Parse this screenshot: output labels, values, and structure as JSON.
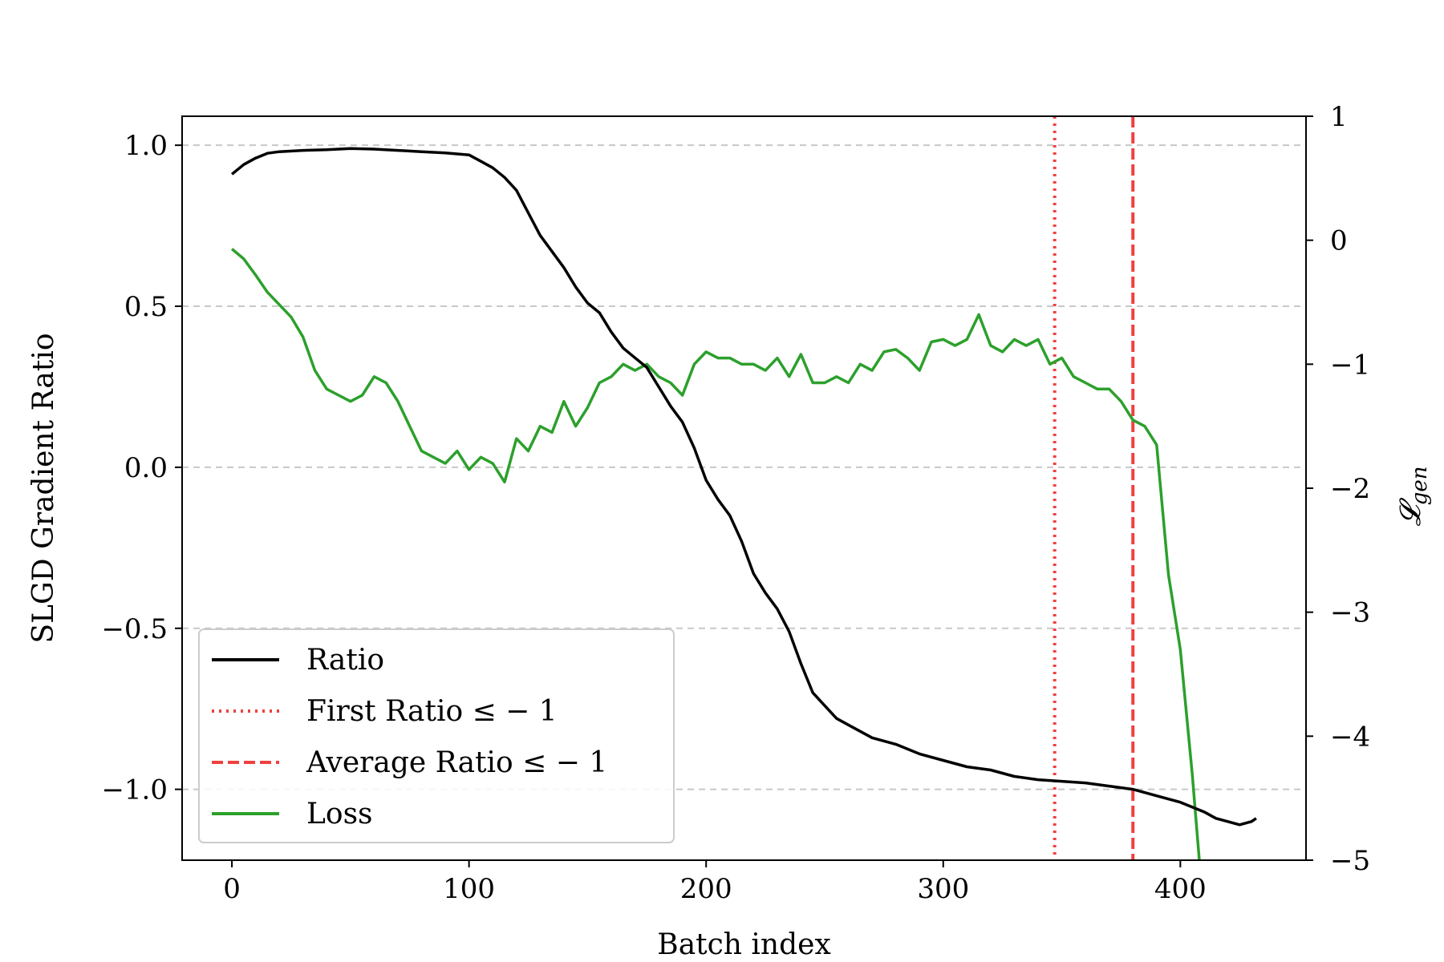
{
  "chart_data": {
    "type": "line",
    "title": "",
    "xlabel": "Batch index",
    "ylabel": "SLGD Gradient Ratio",
    "y2label": "𝓛_gen",
    "xlim": [
      -21,
      453
    ],
    "ylim": [
      -1.22,
      1.09
    ],
    "y2lim": [
      -5,
      1
    ],
    "xticks": [
      0,
      100,
      200,
      300,
      400
    ],
    "yticks": [
      -1.0,
      -0.5,
      0.0,
      0.5,
      1.0
    ],
    "y2ticks": [
      -5,
      -4,
      -3,
      -2,
      -1,
      0,
      1
    ],
    "grid": "horizontal dashed (left axis)",
    "legend_position": "lower-left",
    "colors": {
      "ratio": "#000000",
      "first": "#f04040",
      "average": "#f04040",
      "loss": "#2ca02c",
      "grid": "#c8c8c8"
    },
    "series": [
      {
        "name": "Ratio",
        "axis": "left",
        "x": [
          0,
          5,
          10,
          15,
          20,
          30,
          40,
          50,
          60,
          70,
          80,
          90,
          100,
          105,
          110,
          115,
          120,
          125,
          130,
          135,
          140,
          145,
          150,
          155,
          160,
          165,
          170,
          175,
          180,
          185,
          190,
          195,
          200,
          205,
          210,
          215,
          220,
          225,
          230,
          235,
          240,
          245,
          250,
          255,
          260,
          270,
          280,
          290,
          300,
          310,
          320,
          330,
          340,
          350,
          360,
          370,
          380,
          390,
          400,
          410,
          415,
          420,
          425,
          430,
          432
        ],
        "y": [
          0.91,
          0.94,
          0.96,
          0.975,
          0.98,
          0.984,
          0.986,
          0.99,
          0.988,
          0.984,
          0.98,
          0.976,
          0.97,
          0.95,
          0.93,
          0.9,
          0.86,
          0.79,
          0.72,
          0.67,
          0.62,
          0.56,
          0.51,
          0.48,
          0.42,
          0.37,
          0.34,
          0.31,
          0.25,
          0.19,
          0.14,
          0.06,
          -0.04,
          -0.1,
          -0.15,
          -0.23,
          -0.33,
          -0.39,
          -0.44,
          -0.51,
          -0.61,
          -0.7,
          -0.74,
          -0.78,
          -0.8,
          -0.84,
          -0.86,
          -0.89,
          -0.91,
          -0.93,
          -0.94,
          -0.96,
          -0.97,
          -0.975,
          -0.98,
          -0.99,
          -1.0,
          -1.02,
          -1.04,
          -1.07,
          -1.09,
          -1.1,
          -1.11,
          -1.1,
          -1.09
        ]
      },
      {
        "name": "First Ratio ≤ − 1",
        "axis": "left",
        "x_line": 347
      },
      {
        "name": "Average Ratio ≤ − 1",
        "axis": "left",
        "x_line": 380
      },
      {
        "name": "Loss",
        "axis": "right",
        "x": [
          0,
          5,
          10,
          15,
          20,
          25,
          30,
          35,
          40,
          45,
          50,
          55,
          60,
          65,
          70,
          75,
          80,
          85,
          90,
          95,
          100,
          105,
          110,
          115,
          120,
          125,
          130,
          135,
          140,
          145,
          150,
          155,
          160,
          165,
          170,
          175,
          180,
          185,
          190,
          195,
          200,
          205,
          210,
          215,
          220,
          225,
          230,
          235,
          240,
          245,
          250,
          255,
          260,
          265,
          270,
          275,
          280,
          285,
          290,
          295,
          300,
          305,
          310,
          315,
          320,
          325,
          330,
          335,
          340,
          345,
          350,
          355,
          360,
          365,
          370,
          375,
          380,
          385,
          390,
          395,
          400,
          405,
          408
        ],
        "y": [
          -0.07,
          -0.15,
          -0.28,
          -0.42,
          -0.52,
          -0.62,
          -0.78,
          -1.05,
          -1.2,
          -1.25,
          -1.3,
          -1.25,
          -1.1,
          -1.15,
          -1.3,
          -1.5,
          -1.7,
          -1.75,
          -1.8,
          -1.7,
          -1.85,
          -1.75,
          -1.8,
          -1.95,
          -1.6,
          -1.7,
          -1.5,
          -1.55,
          -1.3,
          -1.5,
          -1.35,
          -1.15,
          -1.1,
          -1.0,
          -1.05,
          -1.0,
          -1.1,
          -1.15,
          -1.25,
          -1.0,
          -0.9,
          -0.95,
          -0.95,
          -1.0,
          -1.0,
          -1.05,
          -0.95,
          -1.1,
          -0.92,
          -1.15,
          -1.15,
          -1.1,
          -1.15,
          -1.0,
          -1.05,
          -0.9,
          -0.88,
          -0.95,
          -1.05,
          -0.82,
          -0.8,
          -0.85,
          -0.8,
          -0.6,
          -0.85,
          -0.9,
          -0.8,
          -0.85,
          -0.8,
          -1.0,
          -0.95,
          -1.1,
          -1.15,
          -1.2,
          -1.2,
          -1.3,
          -1.45,
          -1.5,
          -1.65,
          -2.7,
          -3.3,
          -4.3,
          -5.0
        ]
      }
    ]
  }
}
